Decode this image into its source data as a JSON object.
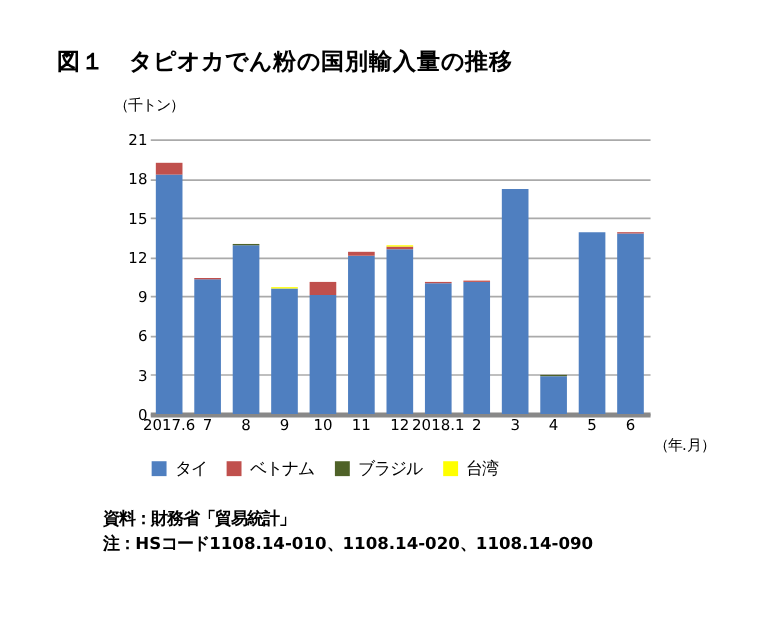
{
  "chart_data": {
    "type": "bar",
    "title": "図１　タピオカでん粉の国別輸入量の推移",
    "ylabel": "（千トン）",
    "xlabel": "（年.月）",
    "categories": [
      "2017.6",
      "7",
      "8",
      "9",
      "10",
      "11",
      "12",
      "2018.1",
      "2",
      "3",
      "4",
      "5",
      "6"
    ],
    "stacked": true,
    "series": [
      {
        "name": "タイ",
        "color": "#4f7fc0",
        "values": [
          18.3,
          10.3,
          12.9,
          9.6,
          9.1,
          12.1,
          12.6,
          10.0,
          10.1,
          17.2,
          2.9,
          13.9,
          13.8
        ]
      },
      {
        "name": "ベトナム",
        "color": "#c0504d",
        "values": [
          0.9,
          0.1,
          0,
          0,
          1.0,
          0.3,
          0.2,
          0.1,
          0.1,
          0,
          0,
          0,
          0.1
        ]
      },
      {
        "name": "ブラジル",
        "color": "#4f6228",
        "values": [
          0,
          0,
          0.1,
          0,
          0,
          0,
          0,
          0,
          0,
          0,
          0.1,
          0,
          0
        ]
      },
      {
        "name": "台湾",
        "color": "#ffff00",
        "values": [
          0,
          0,
          0,
          0.1,
          0,
          0,
          0.1,
          0,
          0,
          0,
          0,
          0,
          0
        ]
      }
    ],
    "ylim": [
      0,
      21
    ],
    "yticks": [
      0,
      3,
      6,
      9,
      12,
      15,
      18,
      21
    ],
    "grid": "y",
    "legend": "bottom",
    "annotations": [
      "資料：財務省「貿易統計」",
      "　注：HSコード1108.14-010、1108.14-020、1108.14-090"
    ]
  }
}
